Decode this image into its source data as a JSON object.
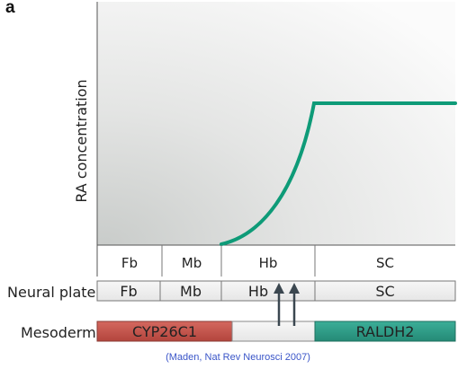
{
  "panel_letter": "a",
  "y_axis_label": "RA concentration",
  "region_labels": [
    "Fb",
    "Mb",
    "Hb",
    "SC"
  ],
  "neural_plate": {
    "label": "Neural plate",
    "segments": [
      "Fb",
      "Mb",
      "Hb",
      "SC"
    ]
  },
  "mesoderm": {
    "label": "Mesoderm",
    "segments": [
      {
        "text": "CYP26C1",
        "color": "#c0504d"
      },
      {
        "text": "",
        "color": "#f3f3f3"
      },
      {
        "text": "RALDH2",
        "color": "#2e9b86"
      }
    ]
  },
  "curve_color": "#0e9b78",
  "arrow_color": "#3b4750",
  "citation": "(Maden, Nat Rev Neurosci 2007)"
}
